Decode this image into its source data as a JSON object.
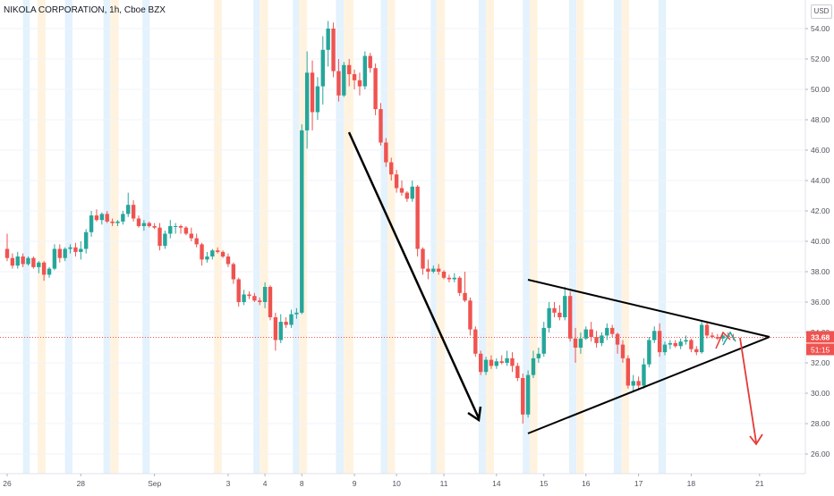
{
  "header": {
    "title": "NIKOLA CORPORATION, 1h, Cboe BZX",
    "currency": "USD"
  },
  "chart_data": {
    "type": "candlestick",
    "symbol": "NIKOLA CORPORATION",
    "interval": "1h",
    "exchange": "Cboe BZX",
    "ylim": [
      25.0,
      55.2
    ],
    "y_ticks": [
      26,
      28,
      30,
      32,
      34,
      36,
      38,
      40,
      42,
      44,
      46,
      48,
      50,
      52,
      54
    ],
    "y_tick_labels": [
      "26.00",
      "28.00",
      "30.00",
      "32.00",
      "34.00",
      "36.00",
      "38.00",
      "40.00",
      "42.00",
      "44.00",
      "46.00",
      "48.00",
      "50.00",
      "52.00",
      "54.00"
    ],
    "x_ticks": [
      {
        "label": "26",
        "i": 0
      },
      {
        "label": "28",
        "i": 14
      },
      {
        "label": "Sep",
        "i": 28
      },
      {
        "label": "3",
        "i": 42
      },
      {
        "label": "4",
        "i": 49
      },
      {
        "label": "8",
        "i": 56
      },
      {
        "label": "9",
        "i": 66
      },
      {
        "label": "10",
        "i": 74
      },
      {
        "label": "11",
        "i": 83
      },
      {
        "label": "14",
        "i": 93
      },
      {
        "label": "15",
        "i": 102
      },
      {
        "label": "16",
        "i": 110
      },
      {
        "label": "17",
        "i": 120
      },
      {
        "label": "18",
        "i": 130
      },
      {
        "label": "21",
        "i": 143
      }
    ],
    "current_price": 33.68,
    "current_price_label": "33.68",
    "countdown_label": "51:15",
    "colors": {
      "up": "#26a69a",
      "down": "#ef5350",
      "premarket_band": "#fff3e0",
      "afterhours_band": "#e3f2fd",
      "price_line": "#ef5350",
      "drawing": "#000000",
      "arrow_green": "#26a69a",
      "arrow_red": "#e53935"
    },
    "session_bands": [
      {
        "i0": 3.0,
        "i1": 4.3,
        "kind": "afterhours"
      },
      {
        "i0": 5.8,
        "i1": 7.3,
        "kind": "premarket"
      },
      {
        "i0": 11.0,
        "i1": 12.4,
        "kind": "afterhours"
      },
      {
        "i0": 18.3,
        "i1": 19.6,
        "kind": "afterhours"
      },
      {
        "i0": 19.6,
        "i1": 21.2,
        "kind": "premarket"
      },
      {
        "i0": 25.7,
        "i1": 27.1,
        "kind": "afterhours"
      },
      {
        "i0": 39.3,
        "i1": 40.8,
        "kind": "premarket"
      },
      {
        "i0": 46.8,
        "i1": 48.0,
        "kind": "afterhours"
      },
      {
        "i0": 48.0,
        "i1": 49.6,
        "kind": "premarket"
      },
      {
        "i0": 54.3,
        "i1": 55.5,
        "kind": "afterhours"
      },
      {
        "i0": 55.5,
        "i1": 57.0,
        "kind": "premarket"
      },
      {
        "i0": 62.5,
        "i1": 64.0,
        "kind": "afterhours"
      },
      {
        "i0": 64.0,
        "i1": 65.8,
        "kind": "premarket"
      },
      {
        "i0": 71.0,
        "i1": 72.3,
        "kind": "afterhours"
      },
      {
        "i0": 72.3,
        "i1": 73.7,
        "kind": "premarket"
      },
      {
        "i0": 80.5,
        "i1": 81.6,
        "kind": "afterhours"
      },
      {
        "i0": 81.6,
        "i1": 83.2,
        "kind": "premarket"
      },
      {
        "i0": 89.6,
        "i1": 91.0,
        "kind": "afterhours"
      },
      {
        "i0": 91.0,
        "i1": 92.5,
        "kind": "premarket"
      },
      {
        "i0": 98.0,
        "i1": 99.3,
        "kind": "afterhours"
      },
      {
        "i0": 99.3,
        "i1": 100.8,
        "kind": "premarket"
      },
      {
        "i0": 106.8,
        "i1": 108.2,
        "kind": "afterhours"
      },
      {
        "i0": 108.2,
        "i1": 109.6,
        "kind": "premarket"
      },
      {
        "i0": 115.3,
        "i1": 116.8,
        "kind": "afterhours"
      },
      {
        "i0": 116.8,
        "i1": 118.2,
        "kind": "premarket"
      },
      {
        "i0": 123.8,
        "i1": 125.2,
        "kind": "afterhours"
      }
    ],
    "candles": [
      [
        39.5,
        40.5,
        38.7,
        38.9
      ],
      [
        38.9,
        39.2,
        38.2,
        38.4
      ],
      [
        38.4,
        39.3,
        38.2,
        39.0
      ],
      [
        39.0,
        39.2,
        38.3,
        38.5
      ],
      [
        38.5,
        39.0,
        38.4,
        38.9
      ],
      [
        38.9,
        39.0,
        38.2,
        38.3
      ],
      [
        38.3,
        38.7,
        37.9,
        38.6
      ],
      [
        38.6,
        38.7,
        37.4,
        37.8
      ],
      [
        37.8,
        38.3,
        37.6,
        38.2
      ],
      [
        38.2,
        39.8,
        38.1,
        39.5
      ],
      [
        39.5,
        39.8,
        38.6,
        38.9
      ],
      [
        38.9,
        39.6,
        38.7,
        39.5
      ],
      [
        39.5,
        39.8,
        39.2,
        39.6
      ],
      [
        39.6,
        39.9,
        39.0,
        39.3
      ],
      [
        39.3,
        40.0,
        38.8,
        39.5
      ],
      [
        39.5,
        40.8,
        39.2,
        40.6
      ],
      [
        40.6,
        42.0,
        40.3,
        41.7
      ],
      [
        41.7,
        42.1,
        41.3,
        41.4
      ],
      [
        41.4,
        41.9,
        41.1,
        41.8
      ],
      [
        41.8,
        42.0,
        41.2,
        41.3
      ],
      [
        41.3,
        41.5,
        41.0,
        41.2
      ],
      [
        41.2,
        41.4,
        41.0,
        41.3
      ],
      [
        41.3,
        42.0,
        41.1,
        41.8
      ],
      [
        41.8,
        43.2,
        41.6,
        42.4
      ],
      [
        42.4,
        42.7,
        41.3,
        41.5
      ],
      [
        41.5,
        41.7,
        40.9,
        41.0
      ],
      [
        41.0,
        41.4,
        40.7,
        41.2
      ],
      [
        41.2,
        41.3,
        40.9,
        41.0
      ],
      [
        41.0,
        41.2,
        40.8,
        40.9
      ],
      [
        40.9,
        41.2,
        39.4,
        39.7
      ],
      [
        39.7,
        40.7,
        39.5,
        40.5
      ],
      [
        40.5,
        41.4,
        40.2,
        41.0
      ],
      [
        41.0,
        41.2,
        40.5,
        41.0
      ],
      [
        41.0,
        41.1,
        40.5,
        40.9
      ],
      [
        40.9,
        41.0,
        40.4,
        40.5
      ],
      [
        40.5,
        40.9,
        40.0,
        40.2
      ],
      [
        40.2,
        40.5,
        39.6,
        39.8
      ],
      [
        39.8,
        39.9,
        38.4,
        38.8
      ],
      [
        38.8,
        39.3,
        38.6,
        39.0
      ],
      [
        39.0,
        39.5,
        38.8,
        39.4
      ],
      [
        39.4,
        39.6,
        39.2,
        39.3
      ],
      [
        39.3,
        39.4,
        38.9,
        39.0
      ],
      [
        39.0,
        39.2,
        38.3,
        38.5
      ],
      [
        38.5,
        38.6,
        37.2,
        37.5
      ],
      [
        37.5,
        37.6,
        35.7,
        36.0
      ],
      [
        36.0,
        36.8,
        35.8,
        36.5
      ],
      [
        36.5,
        36.7,
        36.2,
        36.4
      ],
      [
        36.4,
        36.6,
        36.0,
        36.1
      ],
      [
        36.1,
        36.3,
        35.8,
        36.0
      ],
      [
        36.0,
        37.3,
        35.6,
        37.0
      ],
      [
        37.0,
        37.1,
        34.8,
        35.0
      ],
      [
        35.0,
        35.3,
        32.8,
        33.5
      ],
      [
        33.5,
        35.2,
        33.3,
        34.7
      ],
      [
        34.7,
        35.0,
        34.3,
        34.5
      ],
      [
        34.5,
        35.5,
        34.3,
        35.2
      ],
      [
        35.2,
        35.6,
        34.9,
        35.3
      ],
      [
        35.3,
        47.7,
        35.2,
        47.3
      ],
      [
        47.3,
        52.5,
        46.1,
        51.1
      ],
      [
        51.1,
        51.9,
        47.3,
        48.5
      ],
      [
        48.5,
        50.8,
        48.0,
        50.2
      ],
      [
        50.2,
        53.5,
        49.0,
        52.6
      ],
      [
        52.6,
        54.5,
        51.5,
        54.0
      ],
      [
        54.0,
        54.4,
        50.8,
        51.2
      ],
      [
        51.2,
        52.0,
        49.2,
        49.6
      ],
      [
        49.6,
        51.8,
        49.5,
        51.6
      ],
      [
        51.6,
        52.0,
        50.2,
        51.0
      ],
      [
        51.0,
        51.3,
        50.0,
        50.6
      ],
      [
        50.6,
        51.1,
        49.6,
        50.2
      ],
      [
        50.2,
        52.5,
        50.0,
        52.2
      ],
      [
        52.2,
        52.4,
        51.1,
        51.4
      ],
      [
        51.4,
        51.7,
        48.3,
        48.7
      ],
      [
        48.7,
        49.1,
        46.3,
        46.5
      ],
      [
        46.5,
        46.8,
        44.9,
        45.2
      ],
      [
        45.2,
        45.5,
        44.0,
        44.4
      ],
      [
        44.4,
        44.7,
        43.2,
        43.5
      ],
      [
        43.5,
        44.0,
        43.0,
        43.2
      ],
      [
        43.2,
        43.3,
        42.6,
        42.8
      ],
      [
        42.8,
        44.0,
        42.6,
        43.6
      ],
      [
        43.6,
        43.7,
        39.0,
        39.5
      ],
      [
        39.5,
        39.6,
        37.8,
        38.2
      ],
      [
        38.2,
        38.8,
        37.5,
        38.0
      ],
      [
        38.0,
        38.4,
        37.9,
        38.2
      ],
      [
        38.2,
        38.5,
        37.8,
        38.0
      ],
      [
        38.0,
        38.1,
        37.5,
        37.6
      ],
      [
        37.6,
        37.8,
        37.3,
        37.5
      ],
      [
        37.5,
        37.9,
        37.3,
        37.6
      ],
      [
        37.6,
        37.7,
        36.4,
        36.6
      ],
      [
        36.6,
        38.0,
        36.0,
        36.1
      ],
      [
        36.1,
        36.3,
        33.8,
        34.2
      ],
      [
        34.2,
        34.4,
        32.4,
        32.6
      ],
      [
        32.6,
        32.8,
        31.2,
        31.4
      ],
      [
        31.4,
        32.4,
        31.2,
        32.2
      ],
      [
        32.2,
        32.5,
        31.6,
        31.8
      ],
      [
        31.8,
        32.3,
        31.6,
        32.1
      ],
      [
        32.1,
        32.5,
        31.9,
        32.0
      ],
      [
        32.0,
        32.8,
        31.8,
        32.3
      ],
      [
        32.3,
        32.7,
        31.4,
        31.8
      ],
      [
        31.8,
        32.0,
        30.8,
        31.0
      ],
      [
        31.0,
        31.3,
        28.0,
        28.6
      ],
      [
        28.6,
        31.5,
        28.4,
        31.2
      ],
      [
        31.2,
        32.8,
        31.0,
        32.3
      ],
      [
        32.3,
        33.0,
        32.0,
        32.6
      ],
      [
        32.6,
        34.7,
        32.4,
        34.3
      ],
      [
        34.3,
        36.0,
        34.0,
        35.6
      ],
      [
        35.6,
        36.0,
        35.0,
        35.3
      ],
      [
        35.3,
        35.8,
        34.8,
        35.0
      ],
      [
        35.0,
        37.0,
        34.8,
        36.4
      ],
      [
        36.4,
        36.7,
        33.4,
        33.6
      ],
      [
        33.6,
        34.3,
        32.0,
        33.0
      ],
      [
        33.0,
        34.0,
        32.6,
        33.6
      ],
      [
        33.6,
        34.4,
        33.5,
        34.2
      ],
      [
        34.2,
        34.7,
        33.4,
        33.7
      ],
      [
        33.7,
        34.1,
        33.0,
        33.3
      ],
      [
        33.3,
        34.0,
        33.1,
        33.8
      ],
      [
        33.8,
        34.6,
        33.5,
        34.3
      ],
      [
        34.3,
        34.5,
        33.7,
        33.9
      ],
      [
        33.9,
        34.0,
        32.6,
        33.2
      ],
      [
        33.2,
        33.5,
        32.0,
        32.3
      ],
      [
        32.3,
        32.5,
        30.3,
        30.5
      ],
      [
        30.5,
        31.2,
        30.1,
        30.8
      ],
      [
        30.8,
        31.1,
        30.3,
        30.5
      ],
      [
        30.5,
        32.3,
        30.3,
        31.9
      ],
      [
        31.9,
        33.7,
        31.7,
        33.5
      ],
      [
        33.5,
        34.4,
        33.3,
        34.1
      ],
      [
        34.1,
        34.6,
        32.4,
        32.7
      ],
      [
        32.7,
        33.4,
        32.5,
        33.2
      ],
      [
        33.2,
        33.5,
        32.9,
        33.3
      ],
      [
        33.3,
        33.5,
        33.0,
        33.1
      ],
      [
        33.1,
        33.6,
        32.9,
        33.4
      ],
      [
        33.4,
        33.8,
        33.2,
        33.5
      ],
      [
        33.5,
        33.6,
        32.7,
        32.9
      ],
      [
        32.9,
        33.1,
        32.5,
        32.7
      ],
      [
        32.7,
        34.7,
        32.6,
        34.5
      ],
      [
        34.5,
        34.7,
        33.6,
        33.8
      ],
      [
        33.8,
        34.0,
        33.6,
        33.7
      ],
      [
        33.7,
        33.9,
        33.5,
        33.6
      ],
      [
        33.6,
        34.0,
        33.4,
        33.8
      ],
      [
        33.8,
        34.0,
        33.6,
        33.7
      ],
      [
        33.7,
        33.9,
        33.5,
        33.68
      ]
    ]
  }
}
